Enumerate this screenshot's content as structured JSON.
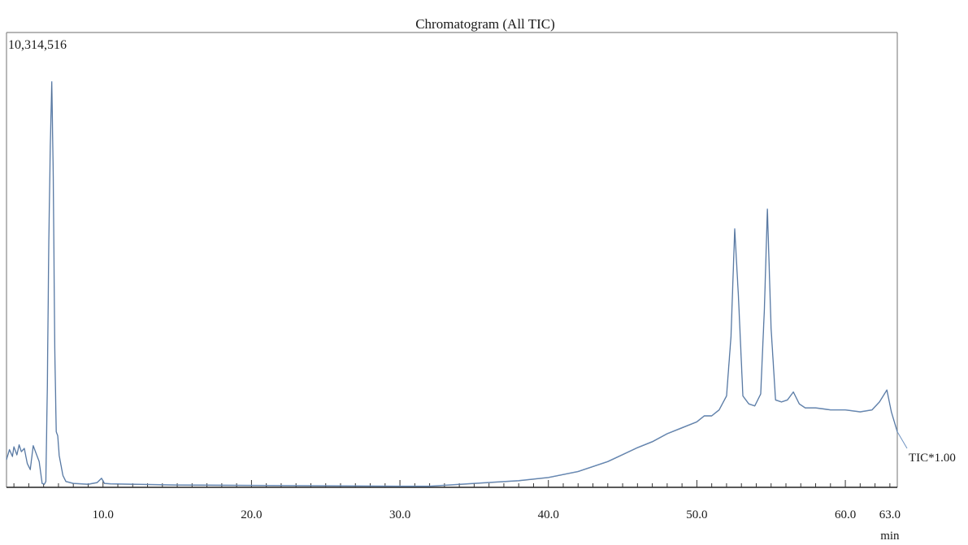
{
  "chart_data": {
    "type": "line",
    "title": "Chromatogram (All TIC)",
    "xlabel": "min",
    "ylabel": "",
    "xlim": [
      3.5,
      63.5
    ],
    "ylim": [
      0,
      10314516
    ],
    "y_max_label": "10,314,516",
    "x_ticks": [
      10.0,
      20.0,
      30.0,
      40.0,
      50.0,
      60.0,
      63.0
    ],
    "x_tick_labels": [
      "10.0",
      "20.0",
      "30.0",
      "40.0",
      "50.0",
      "60.0",
      "63.0"
    ],
    "grid": false,
    "series": [
      {
        "name": "TIC*1.00",
        "color": "#6f93c2",
        "x": [
          3.5,
          3.7,
          3.9,
          4.0,
          4.2,
          4.35,
          4.5,
          4.7,
          4.9,
          5.1,
          5.3,
          5.5,
          5.7,
          5.9,
          6.05,
          6.15,
          6.25,
          6.35,
          6.45,
          6.55,
          6.65,
          6.75,
          6.85,
          6.95,
          7.05,
          7.15,
          7.3,
          7.5,
          8.0,
          9.0,
          9.6,
          9.9,
          10.1,
          10.5,
          12.0,
          15.0,
          20.0,
          25.0,
          30.0,
          32.0,
          35.0,
          38.0,
          40.0,
          42.0,
          44.0,
          46.0,
          47.0,
          48.0,
          49.0,
          50.0,
          50.5,
          51.0,
          51.5,
          52.0,
          52.3,
          52.55,
          52.8,
          53.1,
          53.5,
          53.9,
          54.3,
          54.55,
          54.75,
          55.0,
          55.3,
          55.7,
          56.1,
          56.5,
          56.9,
          57.3,
          58.0,
          59.0,
          60.0,
          61.0,
          61.8,
          62.3,
          62.8,
          63.1,
          63.5
        ],
        "y": [
          700000,
          950000,
          780000,
          1020000,
          820000,
          1070000,
          900000,
          980000,
          600000,
          450000,
          1050000,
          850000,
          650000,
          100000,
          80000,
          150000,
          2500000,
          6200000,
          8600000,
          10200000,
          7800000,
          3500000,
          1400000,
          1300000,
          800000,
          600000,
          300000,
          150000,
          100000,
          80000,
          120000,
          230000,
          100000,
          90000,
          80000,
          60000,
          50000,
          40000,
          30000,
          30000,
          100000,
          170000,
          250000,
          400000,
          650000,
          1000000,
          1150000,
          1350000,
          1500000,
          1650000,
          1800000,
          1800000,
          1950000,
          2300000,
          3800000,
          6500000,
          4800000,
          2300000,
          2100000,
          2050000,
          2350000,
          4500000,
          7000000,
          4000000,
          2200000,
          2150000,
          2200000,
          2400000,
          2100000,
          2000000,
          2000000,
          1950000,
          1950000,
          1900000,
          1950000,
          2150000,
          2450000,
          1900000,
          1400000
        ]
      }
    ]
  }
}
